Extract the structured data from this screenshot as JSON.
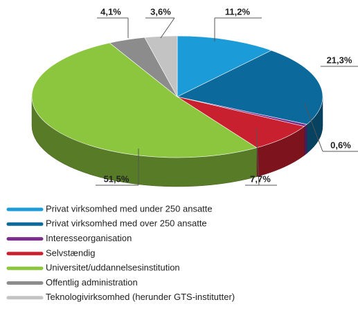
{
  "chart_data": {
    "type": "pie3d",
    "categories": [
      "Privat virksomhed med under 250 ansatte",
      "Privat virksomhed med over 250 ansatte",
      "Interesseorganisation",
      "Selvstændig",
      "Universitet/uddannelsesinstitution",
      "Offentlig administration",
      "Teknologivirksomhed (herunder GTS-institutter)"
    ],
    "values": [
      11.2,
      21.3,
      0.6,
      7.7,
      51.5,
      4.1,
      3.6
    ],
    "value_labels": [
      "11,2%",
      "21,3%",
      "0,6%",
      "7,7%",
      "51,5%",
      "4,1%",
      "3,6%"
    ],
    "colors": [
      "#1b9bd7",
      "#0b6a9b",
      "#7b2d8e",
      "#c9202f",
      "#8cc63f",
      "#8c8c8c",
      "#c3c3c3"
    ]
  }
}
